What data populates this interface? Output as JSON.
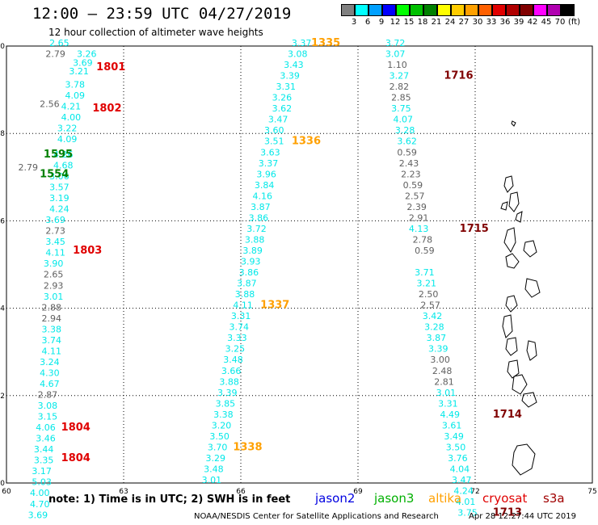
{
  "header": {
    "title": "12:00 — 23:59 UTC 04/27/2019",
    "subtitle": "12 hour collection of altimeter wave heights"
  },
  "colorbar": {
    "bins": [
      {
        "label": "3",
        "color": "#808080"
      },
      {
        "label": "6",
        "color": "#00ffff"
      },
      {
        "label": "9",
        "color": "#00a0ff"
      },
      {
        "label": "12",
        "color": "#0000ff"
      },
      {
        "label": "15",
        "color": "#00ff00"
      },
      {
        "label": "18",
        "color": "#00c000"
      },
      {
        "label": "21",
        "color": "#008000"
      },
      {
        "label": "24",
        "color": "#ffff00"
      },
      {
        "label": "27",
        "color": "#ffcc00"
      },
      {
        "label": "30",
        "color": "#ffa000"
      },
      {
        "label": "33",
        "color": "#ff6000"
      },
      {
        "label": "36",
        "color": "#e00000"
      },
      {
        "label": "39",
        "color": "#b00000"
      },
      {
        "label": "42",
        "color": "#800000"
      },
      {
        "label": "45",
        "color": "#ff00ff"
      },
      {
        "label": "70",
        "color": "#b000b0"
      },
      {
        "label": "",
        "color": "#000000"
      }
    ],
    "unit": "(ft)"
  },
  "map": {
    "lon_range": [
      60,
      75
    ],
    "lat_range": [
      0,
      10
    ],
    "x_ticks": [
      "60",
      "63",
      "66",
      "69",
      "72",
      "75"
    ],
    "y_ticks": [
      "0",
      "2",
      "4",
      "6",
      "8",
      "10"
    ],
    "tracks": [
      {
        "name": "track-a",
        "color": "#00e8e8",
        "points": [
          {
            "lon": 61.1,
            "lat": 10.0,
            "v": "2.65"
          },
          {
            "lon": 61.8,
            "lat": 9.75,
            "v": "3.26"
          },
          {
            "lon": 61.7,
            "lat": 9.55,
            "v": "3.69"
          },
          {
            "lon": 61.6,
            "lat": 9.35,
            "v": "3.21"
          },
          {
            "lon": 61.5,
            "lat": 9.05,
            "v": "3.78"
          },
          {
            "lon": 61.5,
            "lat": 8.8,
            "v": "4.09"
          },
          {
            "lon": 61.4,
            "lat": 8.55,
            "v": "4.21"
          },
          {
            "lon": 61.4,
            "lat": 8.3,
            "v": "4.00"
          },
          {
            "lon": 61.3,
            "lat": 8.05,
            "v": "3.22"
          },
          {
            "lon": 61.3,
            "lat": 7.8,
            "v": "4.09"
          },
          {
            "lon": 61.2,
            "lat": 7.45,
            "v": "4.26"
          },
          {
            "lon": 61.2,
            "lat": 7.2,
            "v": "4.68"
          },
          {
            "lon": 61.1,
            "lat": 6.95,
            "v": "3.06"
          },
          {
            "lon": 61.1,
            "lat": 6.7,
            "v": "3.57"
          },
          {
            "lon": 61.1,
            "lat": 6.45,
            "v": "3.19"
          },
          {
            "lon": 61.1,
            "lat": 6.2,
            "v": "4.24"
          },
          {
            "lon": 61.0,
            "lat": 5.95,
            "v": "3.69"
          },
          {
            "lon": 61.0,
            "lat": 5.45,
            "v": "3.45"
          },
          {
            "lon": 61.0,
            "lat": 5.2,
            "v": "4.11"
          },
          {
            "lon": 60.95,
            "lat": 4.95,
            "v": "3.90"
          },
          {
            "lon": 60.95,
            "lat": 4.2,
            "v": "3.01"
          },
          {
            "lon": 60.9,
            "lat": 3.45,
            "v": "3.38"
          },
          {
            "lon": 60.9,
            "lat": 3.2,
            "v": "3.74"
          },
          {
            "lon": 60.9,
            "lat": 2.95,
            "v": "4.11"
          },
          {
            "lon": 60.85,
            "lat": 2.7,
            "v": "3.24"
          },
          {
            "lon": 60.85,
            "lat": 2.45,
            "v": "4.30"
          },
          {
            "lon": 60.85,
            "lat": 2.2,
            "v": "4.67"
          },
          {
            "lon": 60.8,
            "lat": 1.7,
            "v": "3.08"
          },
          {
            "lon": 60.8,
            "lat": 1.45,
            "v": "3.15"
          },
          {
            "lon": 60.75,
            "lat": 1.2,
            "v": "4.06"
          },
          {
            "lon": 60.75,
            "lat": 0.95,
            "v": "3.46"
          },
          {
            "lon": 60.7,
            "lat": 0.7,
            "v": "3.44"
          },
          {
            "lon": 60.7,
            "lat": 0.45,
            "v": "3.35"
          },
          {
            "lon": 60.65,
            "lat": 0.2,
            "v": "3.17"
          },
          {
            "lon": 60.65,
            "lat": -0.05,
            "v": "5.03"
          },
          {
            "lon": 60.6,
            "lat": -0.3,
            "v": "4.00"
          },
          {
            "lon": 60.6,
            "lat": -0.55,
            "v": "4.70"
          },
          {
            "lon": 60.55,
            "lat": -0.8,
            "v": "3.69"
          }
        ]
      },
      {
        "name": "track-a-grey",
        "color": "#606060",
        "points": [
          {
            "lon": 61.0,
            "lat": 9.75,
            "v": "2.79"
          },
          {
            "lon": 60.85,
            "lat": 8.6,
            "v": "2.56"
          },
          {
            "lon": 60.3,
            "lat": 7.15,
            "v": "2.79"
          },
          {
            "lon": 61.0,
            "lat": 5.7,
            "v": "2.73"
          },
          {
            "lon": 60.95,
            "lat": 4.7,
            "v": "2.65"
          },
          {
            "lon": 60.95,
            "lat": 4.45,
            "v": "2.93"
          },
          {
            "lon": 60.9,
            "lat": 3.95,
            "v": "2.88"
          },
          {
            "lon": 60.9,
            "lat": 3.7,
            "v": "2.94"
          },
          {
            "lon": 60.8,
            "lat": 1.95,
            "v": "2.87"
          }
        ]
      },
      {
        "name": "track-b",
        "color": "#00e8e8",
        "points": [
          {
            "lon": 67.3,
            "lat": 10.0,
            "v": "3.37"
          },
          {
            "lon": 67.2,
            "lat": 9.75,
            "v": "3.08"
          },
          {
            "lon": 67.1,
            "lat": 9.5,
            "v": "3.43"
          },
          {
            "lon": 67.0,
            "lat": 9.25,
            "v": "3.39"
          },
          {
            "lon": 66.9,
            "lat": 9.0,
            "v": "3.31"
          },
          {
            "lon": 66.8,
            "lat": 8.75,
            "v": "3.26"
          },
          {
            "lon": 66.8,
            "lat": 8.5,
            "v": "3.62"
          },
          {
            "lon": 66.7,
            "lat": 8.25,
            "v": "3.47"
          },
          {
            "lon": 66.6,
            "lat": 8.0,
            "v": "3.60"
          },
          {
            "lon": 66.6,
            "lat": 7.75,
            "v": "3.51"
          },
          {
            "lon": 66.5,
            "lat": 7.5,
            "v": "3.63"
          },
          {
            "lon": 66.45,
            "lat": 7.25,
            "v": "3.37"
          },
          {
            "lon": 66.4,
            "lat": 7.0,
            "v": "3.96"
          },
          {
            "lon": 66.35,
            "lat": 6.75,
            "v": "3.84"
          },
          {
            "lon": 66.3,
            "lat": 6.5,
            "v": "4.16"
          },
          {
            "lon": 66.25,
            "lat": 6.25,
            "v": "3.87"
          },
          {
            "lon": 66.2,
            "lat": 6.0,
            "v": "3.86"
          },
          {
            "lon": 66.15,
            "lat": 5.75,
            "v": "3.72"
          },
          {
            "lon": 66.1,
            "lat": 5.5,
            "v": "3.88"
          },
          {
            "lon": 66.05,
            "lat": 5.25,
            "v": "3.89"
          },
          {
            "lon": 66.0,
            "lat": 5.0,
            "v": "3.93"
          },
          {
            "lon": 65.95,
            "lat": 4.75,
            "v": "3.86"
          },
          {
            "lon": 65.9,
            "lat": 4.5,
            "v": "3.87"
          },
          {
            "lon": 65.85,
            "lat": 4.25,
            "v": "3.88"
          },
          {
            "lon": 65.8,
            "lat": 4.0,
            "v": "4.11"
          },
          {
            "lon": 65.75,
            "lat": 3.75,
            "v": "3.31"
          },
          {
            "lon": 65.7,
            "lat": 3.5,
            "v": "3.74"
          },
          {
            "lon": 65.65,
            "lat": 3.25,
            "v": "3.33"
          },
          {
            "lon": 65.6,
            "lat": 3.0,
            "v": "3.25"
          },
          {
            "lon": 65.55,
            "lat": 2.75,
            "v": "3.48"
          },
          {
            "lon": 65.5,
            "lat": 2.5,
            "v": "3.66"
          },
          {
            "lon": 65.45,
            "lat": 2.25,
            "v": "3.88"
          },
          {
            "lon": 65.4,
            "lat": 2.0,
            "v": "3.39"
          },
          {
            "lon": 65.35,
            "lat": 1.75,
            "v": "3.85"
          },
          {
            "lon": 65.3,
            "lat": 1.5,
            "v": "3.38"
          },
          {
            "lon": 65.25,
            "lat": 1.25,
            "v": "3.20"
          },
          {
            "lon": 65.2,
            "lat": 1.0,
            "v": "3.50"
          },
          {
            "lon": 65.15,
            "lat": 0.75,
            "v": "3.70"
          },
          {
            "lon": 65.1,
            "lat": 0.5,
            "v": "3.29"
          },
          {
            "lon": 65.05,
            "lat": 0.25,
            "v": "3.48"
          },
          {
            "lon": 65.0,
            "lat": 0.0,
            "v": "3.01"
          }
        ]
      },
      {
        "name": "track-c",
        "color": "#00e8e8",
        "points": [
          {
            "lon": 69.7,
            "lat": 10.0,
            "v": "3.72"
          },
          {
            "lon": 69.7,
            "lat": 9.75,
            "v": "3.07"
          },
          {
            "lon": 69.8,
            "lat": 9.25,
            "v": "3.27"
          },
          {
            "lon": 69.85,
            "lat": 8.5,
            "v": "3.75"
          },
          {
            "lon": 69.9,
            "lat": 8.25,
            "v": "4.07"
          },
          {
            "lon": 69.95,
            "lat": 8.0,
            "v": "3.28"
          },
          {
            "lon": 70.0,
            "lat": 7.75,
            "v": "3.62"
          },
          {
            "lon": 70.3,
            "lat": 5.75,
            "v": "4.13"
          },
          {
            "lon": 70.45,
            "lat": 4.75,
            "v": "3.71"
          },
          {
            "lon": 70.5,
            "lat": 4.5,
            "v": "3.21"
          },
          {
            "lon": 70.65,
            "lat": 3.75,
            "v": "3.42"
          },
          {
            "lon": 70.7,
            "lat": 3.5,
            "v": "3.28"
          },
          {
            "lon": 70.75,
            "lat": 3.25,
            "v": "3.87"
          },
          {
            "lon": 70.8,
            "lat": 3.0,
            "v": "3.39"
          },
          {
            "lon": 71.0,
            "lat": 2.0,
            "v": "3.01"
          },
          {
            "lon": 71.05,
            "lat": 1.75,
            "v": "3.31"
          },
          {
            "lon": 71.1,
            "lat": 1.5,
            "v": "4.49"
          },
          {
            "lon": 71.15,
            "lat": 1.25,
            "v": "3.61"
          },
          {
            "lon": 71.2,
            "lat": 1.0,
            "v": "3.49"
          },
          {
            "lon": 71.25,
            "lat": 0.75,
            "v": "3.50"
          },
          {
            "lon": 71.3,
            "lat": 0.5,
            "v": "3.76"
          },
          {
            "lon": 71.35,
            "lat": 0.25,
            "v": "4.04"
          },
          {
            "lon": 71.4,
            "lat": 0.0,
            "v": "3.47"
          },
          {
            "lon": 71.45,
            "lat": -0.25,
            "v": "4.24"
          },
          {
            "lon": 71.5,
            "lat": -0.5,
            "v": "4.01"
          },
          {
            "lon": 71.55,
            "lat": -0.75,
            "v": "3.75"
          }
        ]
      },
      {
        "name": "track-c-grey",
        "color": "#606060",
        "points": [
          {
            "lon": 69.75,
            "lat": 9.5,
            "v": "1.10"
          },
          {
            "lon": 69.8,
            "lat": 9.0,
            "v": "2.82"
          },
          {
            "lon": 69.85,
            "lat": 8.75,
            "v": "2.85"
          },
          {
            "lon": 70.0,
            "lat": 7.5,
            "v": "0.59"
          },
          {
            "lon": 70.05,
            "lat": 7.25,
            "v": "2.43"
          },
          {
            "lon": 70.1,
            "lat": 7.0,
            "v": "2.23"
          },
          {
            "lon": 70.15,
            "lat": 6.75,
            "v": "0.59"
          },
          {
            "lon": 70.2,
            "lat": 6.5,
            "v": "2.57"
          },
          {
            "lon": 70.25,
            "lat": 6.25,
            "v": "2.39"
          },
          {
            "lon": 70.3,
            "lat": 6.0,
            "v": "2.91"
          },
          {
            "lon": 70.4,
            "lat": 5.5,
            "v": "2.78"
          },
          {
            "lon": 70.45,
            "lat": 5.25,
            "v": "0.59"
          },
          {
            "lon": 70.55,
            "lat": 4.25,
            "v": "2.50"
          },
          {
            "lon": 70.6,
            "lat": 4.0,
            "v": "2.57"
          },
          {
            "lon": 70.85,
            "lat": 2.75,
            "v": "3.00"
          },
          {
            "lon": 70.9,
            "lat": 2.5,
            "v": "2.48"
          },
          {
            "lon": 70.95,
            "lat": 2.25,
            "v": "2.81"
          }
        ]
      },
      {
        "name": "track-green",
        "color": "#00c000",
        "points": []
      }
    ],
    "time_labels": [
      {
        "text": "1801",
        "color": "#e00000",
        "lon": 62.3,
        "lat": 9.45
      },
      {
        "text": "1802",
        "color": "#e00000",
        "lon": 62.2,
        "lat": 8.5
      },
      {
        "text": "1803",
        "color": "#e00000",
        "lon": 61.7,
        "lat": 5.25
      },
      {
        "text": "1804",
        "color": "#e00000",
        "lon": 61.4,
        "lat": 1.2
      },
      {
        "text": "1804",
        "color": "#e00000",
        "lon": 61.4,
        "lat": 0.5
      },
      {
        "text": "1595",
        "color": "#008000",
        "lon": 60.95,
        "lat": 7.45
      },
      {
        "text": "1554",
        "color": "#008000",
        "lon": 60.85,
        "lat": 7.0
      },
      {
        "text": "1335",
        "color": "#ffa000",
        "lon": 67.8,
        "lat": 10.0
      },
      {
        "text": "1336",
        "color": "#ffa000",
        "lon": 67.3,
        "lat": 7.75
      },
      {
        "text": "1337",
        "color": "#ffa000",
        "lon": 66.5,
        "lat": 4.0
      },
      {
        "text": "1338",
        "color": "#ffa000",
        "lon": 65.8,
        "lat": 0.75
      },
      {
        "text": "1716",
        "color": "#800000",
        "lon": 71.2,
        "lat": 9.25
      },
      {
        "text": "1715",
        "color": "#800000",
        "lon": 71.6,
        "lat": 5.75
      },
      {
        "text": "1714",
        "color": "#800000",
        "lon": 72.45,
        "lat": 1.5
      },
      {
        "text": "1713",
        "color": "#800000",
        "lon": 72.45,
        "lat": -0.75
      }
    ]
  },
  "footer": {
    "note": "note: 1) Time is in UTC; 2) SWH is in feet",
    "legend": [
      {
        "label": "jason2",
        "color": "#0000e0"
      },
      {
        "label": "jason3",
        "color": "#00b000"
      },
      {
        "label": "altika",
        "color": "#ffa000"
      },
      {
        "label": "cryosat",
        "color": "#e00000"
      },
      {
        "label": "s3a",
        "color": "#a00000"
      }
    ],
    "credit": "NOAA/NESDIS Center for Satellite Applications and Research",
    "timestamp": "Apr 28 12:27:44 UTC 2019"
  }
}
